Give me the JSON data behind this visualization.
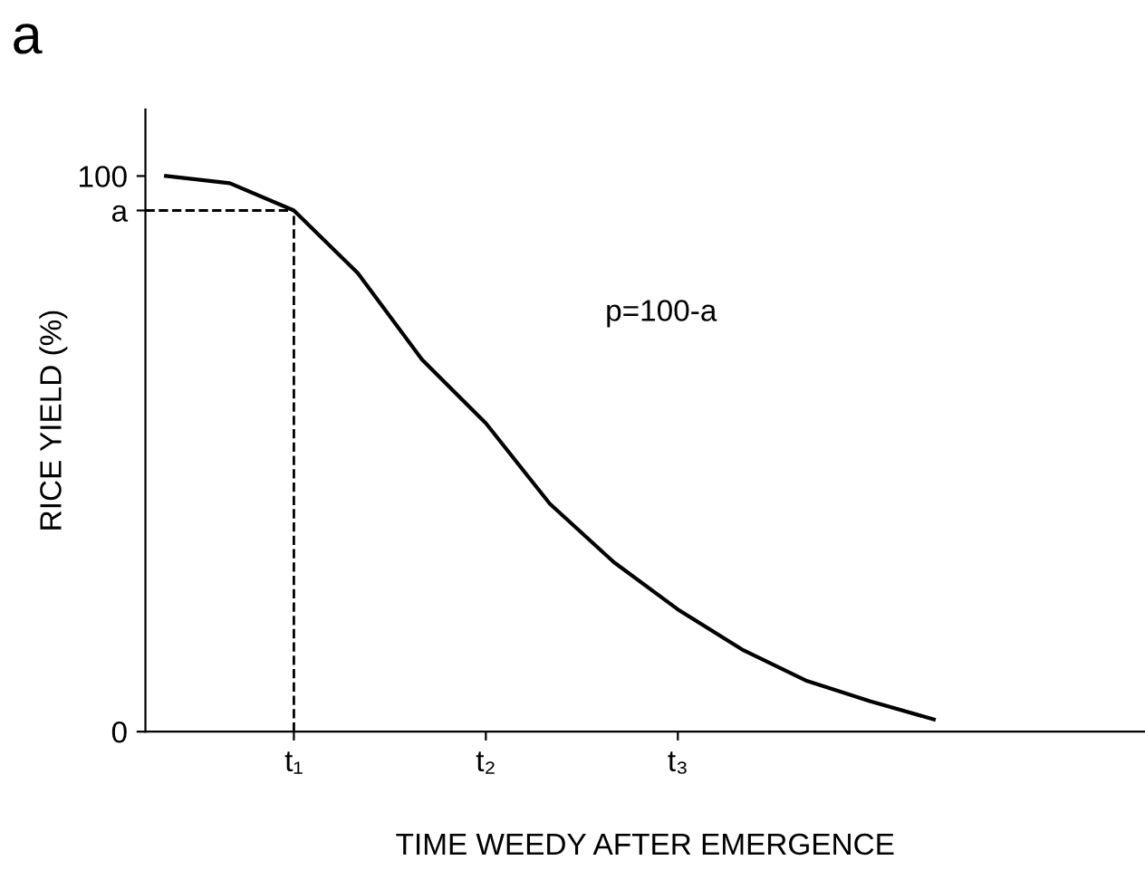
{
  "chart_data": {
    "type": "line",
    "title": "a",
    "xlabel": "TIME WEEDY AFTER EMERGENCE",
    "ylabel": "RICE YIELD (%)",
    "categories": [
      null,
      null,
      "t₁",
      null,
      null,
      "t₂",
      null,
      null,
      "t₃",
      null,
      null,
      null,
      null,
      null,
      null,
      null
    ],
    "series": [
      {
        "color": "#000000",
        "values": [
          100,
          98.7,
          93.8,
          82.5,
          67,
          55.5,
          41,
          30.5,
          22,
          14.8,
          9.2,
          5.5,
          2.2,
          null,
          null,
          null
        ]
      }
    ],
    "ylim": [
      0,
      112
    ],
    "yticks": [
      0,
      {
        "value": 93.8,
        "label": "a"
      },
      100
    ],
    "ref_lines": [
      {
        "axis": "y",
        "value": 93.8,
        "color": "#000000",
        "line_style": "dashed"
      },
      {
        "axis": "x",
        "value": "t₁",
        "color": "#000000",
        "line_style": "dashed"
      }
    ],
    "annotations": [
      "p=100-a"
    ],
    "grid": false,
    "legend": false,
    "marker": "none",
    "line_style": "solid"
  }
}
